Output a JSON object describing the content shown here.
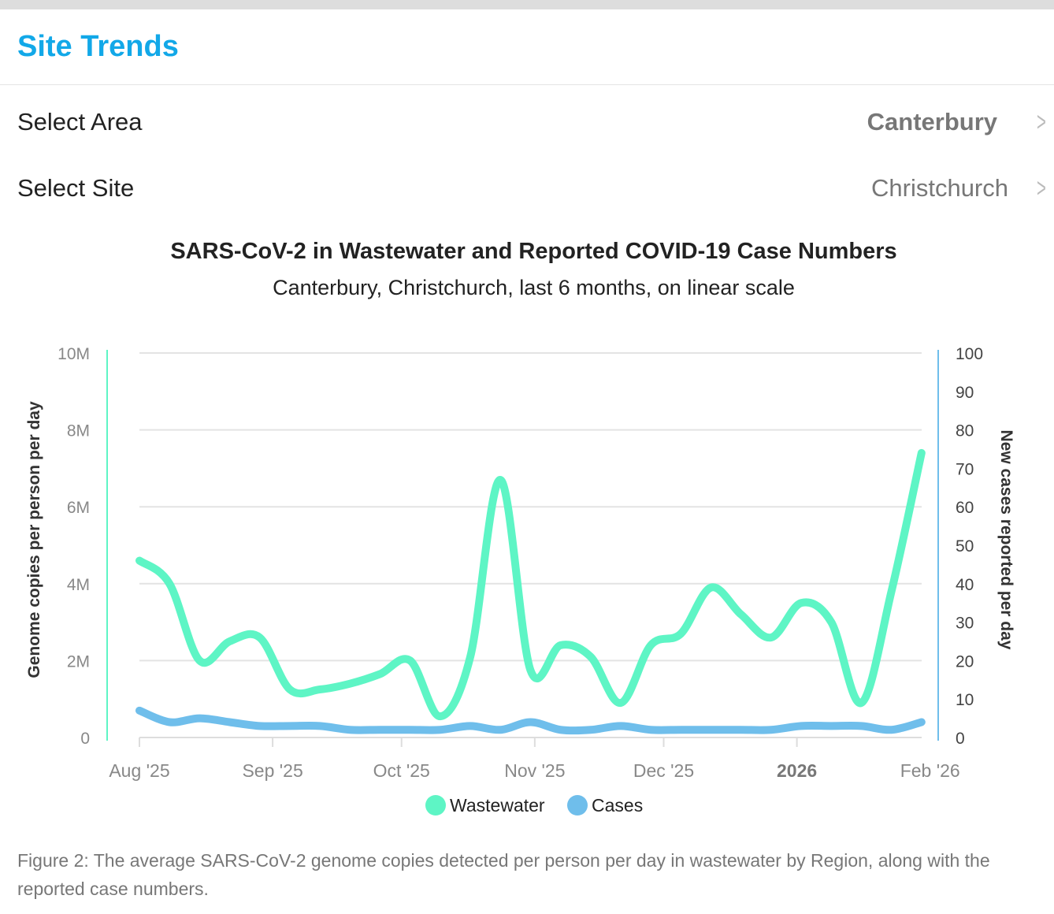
{
  "header": {
    "title": "Site Trends"
  },
  "filters": [
    {
      "label": "Select Area",
      "value": "Canterbury"
    },
    {
      "label": "Select Site",
      "value": "Christchurch"
    }
  ],
  "chart_data": {
    "type": "line",
    "title": "SARS-CoV-2 in Wastewater and Reported COVID-19 Case Numbers",
    "subtitle": "Canterbury, Christchurch, last 6 months, on linear scale",
    "ylabel": "Genome copies per person per day",
    "y2label": "New cases reported per day",
    "ylim": [
      0,
      10000000
    ],
    "y2lim": [
      0,
      100
    ],
    "yticks": [
      "0",
      "2M",
      "4M",
      "6M",
      "8M",
      "10M"
    ],
    "y2ticks": [
      "0",
      "10",
      "20",
      "30",
      "40",
      "50",
      "60",
      "70",
      "80",
      "90",
      "100"
    ],
    "xticks": [
      {
        "label": "Aug '25",
        "day": 0
      },
      {
        "label": "Sep '25",
        "day": 31
      },
      {
        "label": "Oct '25",
        "day": 61
      },
      {
        "label": "Nov '25",
        "day": 92
      },
      {
        "label": "Dec '25",
        "day": 122
      },
      {
        "label": "2026",
        "day": 153,
        "bold": true
      },
      {
        "label": "Feb '26",
        "day": 184
      }
    ],
    "x_days": [
      0,
      7,
      14,
      21,
      28,
      35,
      42,
      49,
      56,
      63,
      70,
      77,
      84,
      91,
      98,
      105,
      112,
      119,
      126,
      133,
      140,
      147,
      154,
      161,
      168,
      175,
      182
    ],
    "series": [
      {
        "name": "Wastewater",
        "color": "#5ef5c5",
        "axis": "left",
        "values": [
          4600000,
          4000000,
          2000000,
          2500000,
          2600000,
          1250000,
          1250000,
          1400000,
          1650000,
          2000000,
          550000,
          2100000,
          6700000,
          1750000,
          2400000,
          2100000,
          900000,
          2400000,
          2700000,
          3900000,
          3200000,
          2600000,
          3500000,
          3000000,
          900000,
          3800000,
          7400000
        ]
      },
      {
        "name": "Cases",
        "color": "#6fbeeb",
        "axis": "right",
        "values": [
          7,
          4,
          5,
          4,
          3,
          3,
          3,
          2,
          2,
          2,
          2,
          3,
          2,
          4,
          2,
          2,
          3,
          2,
          2,
          2,
          2,
          2,
          3,
          3,
          3,
          2,
          4
        ]
      }
    ],
    "grid": true,
    "legend": "bottom"
  },
  "caption": "Figure 2: The average SARS-CoV-2 genome copies detected per person per day in wastewater by Region, along with the reported case numbers."
}
